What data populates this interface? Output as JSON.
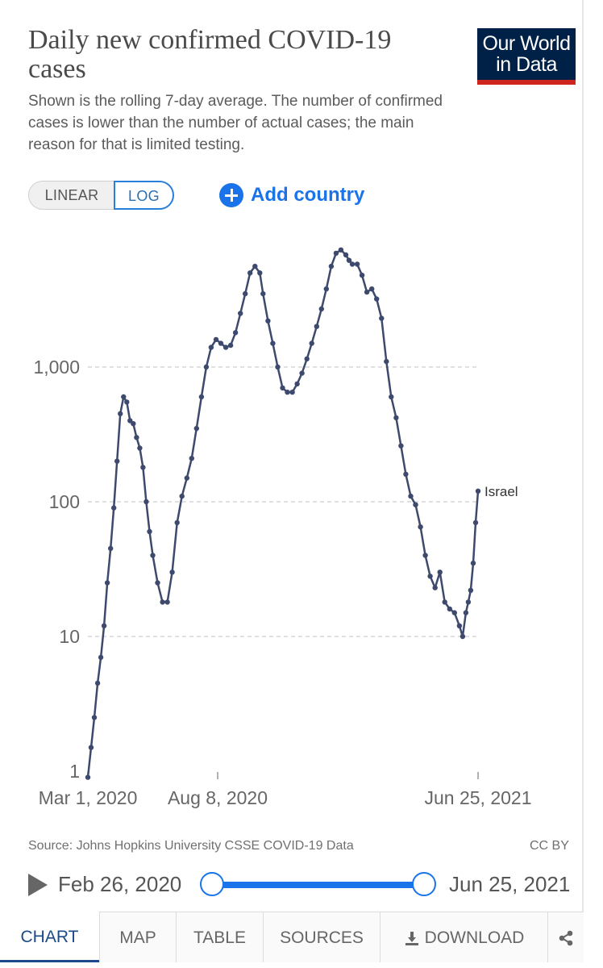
{
  "header": {
    "title": "Daily new confirmed COVID-19 cases",
    "subtitle": "Shown is the rolling 7-day average. The number of confirmed cases is lower than the number of actual cases; the main reason for that is limited testing.",
    "logo_line1": "Our World",
    "logo_line2": "in Data"
  },
  "controls": {
    "linear_label": "LINEAR",
    "log_label": "LOG",
    "selected_scale": "LOG",
    "add_country_label": "Add country"
  },
  "chart_data": {
    "type": "line",
    "title": "Daily new confirmed COVID-19 cases",
    "y_scale": "log",
    "ylim": [
      1,
      10000
    ],
    "y_ticks": [
      1,
      10,
      100,
      1000
    ],
    "y_tick_labels": [
      "1",
      "10",
      "100",
      "1,000"
    ],
    "x_tick_labels": [
      "Mar 1, 2020",
      "Aug 8, 2020",
      "Jun 25, 2021"
    ],
    "xlim": [
      "2020-03-01",
      "2021-06-25"
    ],
    "grid": true,
    "line_color": "#3e4a6d",
    "series": [
      {
        "name": "Israel",
        "x": [
          "2020-03-01",
          "2020-03-05",
          "2020-03-09",
          "2020-03-13",
          "2020-03-17",
          "2020-03-21",
          "2020-03-25",
          "2020-03-29",
          "2020-04-02",
          "2020-04-06",
          "2020-04-10",
          "2020-04-14",
          "2020-04-18",
          "2020-04-22",
          "2020-04-26",
          "2020-04-30",
          "2020-05-04",
          "2020-05-08",
          "2020-05-12",
          "2020-05-16",
          "2020-05-20",
          "2020-05-26",
          "2020-06-01",
          "2020-06-07",
          "2020-06-13",
          "2020-06-19",
          "2020-06-25",
          "2020-07-01",
          "2020-07-07",
          "2020-07-13",
          "2020-07-19",
          "2020-07-25",
          "2020-07-31",
          "2020-08-06",
          "2020-08-12",
          "2020-08-18",
          "2020-08-24",
          "2020-08-30",
          "2020-09-05",
          "2020-09-11",
          "2020-09-17",
          "2020-09-23",
          "2020-09-29",
          "2020-10-03",
          "2020-10-09",
          "2020-10-15",
          "2020-10-21",
          "2020-10-27",
          "2020-11-02",
          "2020-11-08",
          "2020-11-14",
          "2020-11-20",
          "2020-11-26",
          "2020-12-02",
          "2020-12-08",
          "2020-12-14",
          "2020-12-20",
          "2020-12-26",
          "2021-01-01",
          "2021-01-07",
          "2021-01-13",
          "2021-01-17",
          "2021-01-21",
          "2021-01-27",
          "2021-02-02",
          "2021-02-08",
          "2021-02-14",
          "2021-02-20",
          "2021-02-26",
          "2021-03-04",
          "2021-03-10",
          "2021-03-16",
          "2021-03-22",
          "2021-03-28",
          "2021-04-03",
          "2021-04-09",
          "2021-04-15",
          "2021-04-21",
          "2021-04-27",
          "2021-05-03",
          "2021-05-09",
          "2021-05-15",
          "2021-05-21",
          "2021-05-27",
          "2021-06-02",
          "2021-06-06",
          "2021-06-10",
          "2021-06-13",
          "2021-06-16",
          "2021-06-19",
          "2021-06-22",
          "2021-06-25"
        ],
        "y": [
          0.9,
          1.5,
          2.5,
          4.5,
          7,
          12,
          25,
          45,
          90,
          200,
          450,
          600,
          550,
          400,
          380,
          300,
          250,
          180,
          100,
          60,
          40,
          25,
          18,
          18,
          30,
          70,
          110,
          150,
          210,
          350,
          600,
          1000,
          1400,
          1600,
          1500,
          1400,
          1450,
          1800,
          2500,
          3500,
          5000,
          5600,
          5000,
          3500,
          2200,
          1500,
          1000,
          700,
          650,
          650,
          750,
          900,
          1150,
          1500,
          2000,
          2700,
          3800,
          5600,
          7000,
          7400,
          6800,
          6200,
          5800,
          5800,
          4800,
          3600,
          3800,
          3200,
          2300,
          1100,
          600,
          420,
          260,
          160,
          110,
          95,
          65,
          40,
          28,
          23,
          30,
          18,
          16,
          15,
          12,
          10,
          15,
          18,
          22,
          35,
          70,
          120
        ]
      }
    ]
  },
  "footer": {
    "source": "Source: Johns Hopkins University CSSE COVID-19 Data",
    "license": "CC BY"
  },
  "timeline": {
    "start_label": "Feb 26, 2020",
    "end_label": "Jun 25, 2021"
  },
  "tabs": [
    {
      "label": "CHART",
      "active": true
    },
    {
      "label": "MAP"
    },
    {
      "label": "TABLE"
    },
    {
      "label": "SOURCES"
    },
    {
      "label": "DOWNLOAD"
    }
  ]
}
